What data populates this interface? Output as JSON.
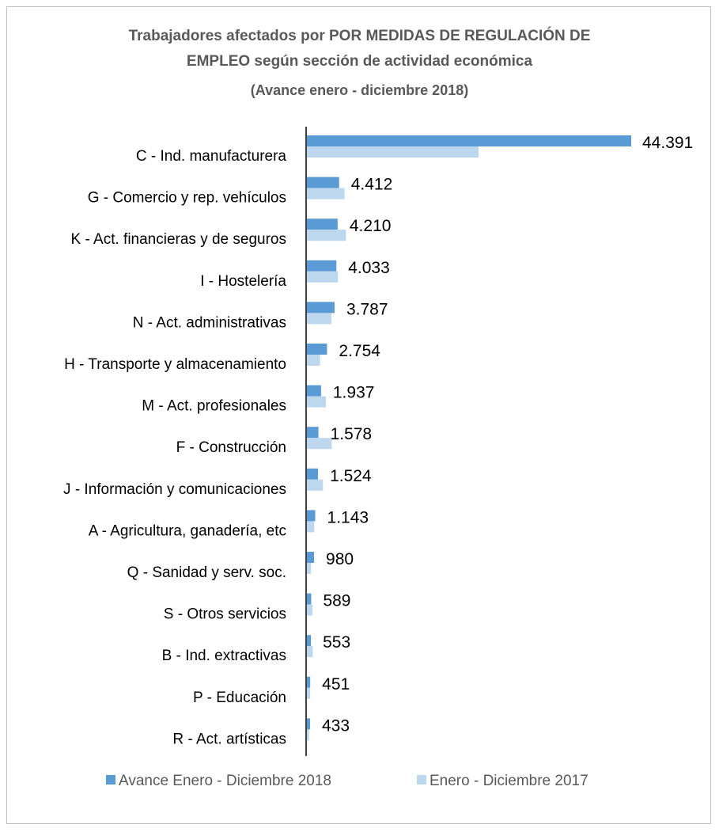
{
  "chart_data": {
    "type": "bar",
    "orientation": "horizontal",
    "title_lines": [
      "Trabajadores  afectados por POR MEDIDAS  DE REGULACIÓN  DE",
      "EMPLEO según  sección de actividad económica",
      "(Avance enero - diciembre 2018)"
    ],
    "categories": [
      "C - Ind. manufacturera",
      "G - Comercio y rep. vehículos",
      "K - Act. financieras y de seguros",
      "I - Hostelería",
      "N - Act. administrativas",
      "H - Transporte y almacenamiento",
      "M - Act. profesionales",
      "F - Construcción",
      "J - Información y comunicaciones",
      "A - Agricultura, ganadería, etc",
      "Q - Sanidad y serv. soc.",
      "S - Otros servicios",
      "B - Ind. extractivas",
      "P - Educación",
      "R - Act. artísticas"
    ],
    "series": [
      {
        "name": "Avance Enero - Diciembre 2018",
        "color": "#5b9bd5",
        "values": [
          44391,
          4412,
          4210,
          4033,
          3787,
          2754,
          1937,
          1578,
          1524,
          1143,
          980,
          589,
          553,
          451,
          433
        ],
        "labels": [
          "44.391",
          "4.412",
          "4.210",
          "4.033",
          "3.787",
          "2.754",
          "1.937",
          "1.578",
          "1.524",
          "1.143",
          "980",
          "589",
          "553",
          "451",
          "433"
        ]
      },
      {
        "name": "Enero - Diciembre 2017",
        "color": "#bdd7ee",
        "values": [
          23500,
          5150,
          5350,
          4250,
          3350,
          1800,
          2600,
          3400,
          2200,
          1000,
          550,
          750,
          800,
          450,
          300
        ]
      }
    ],
    "xlim": [
      0,
      46000
    ],
    "legend_position": "bottom",
    "grid": false
  }
}
